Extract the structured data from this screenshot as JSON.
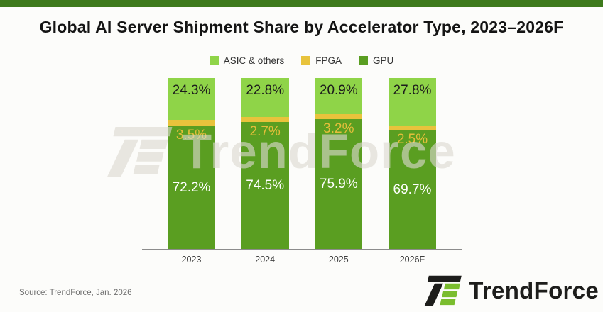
{
  "title": "Global AI Server Shipment Share by Accelerator Type, 2023–2026F",
  "source": "Source: TrendForce, Jan. 2026",
  "watermark": {
    "text": "TrendForce"
  },
  "footer": {
    "brand": "TrendForce"
  },
  "colors": {
    "banner": "#3E7A1C",
    "background": "#FCFCFA",
    "axis_line": "#8C8C8C",
    "asic_green": "#8FD448",
    "fpga_gold": "#E8C33C",
    "gpu_green": "#5A9E21"
  },
  "chart_data": {
    "type": "bar",
    "stacked": true,
    "unit": "%",
    "title": "Global AI Server Shipment Share by Accelerator Type, 2023–2026F",
    "categories": [
      "2023",
      "2024",
      "2025",
      "2026F"
    ],
    "series": [
      {
        "name": "ASIC & others",
        "color": "#8FD448",
        "label_color": "#1C1C1C",
        "values": [
          24.3,
          22.8,
          20.9,
          27.8
        ]
      },
      {
        "name": "FPGA",
        "color": "#E8C33C",
        "label_color": "#E4BE3A",
        "values": [
          3.5,
          2.7,
          3.2,
          2.5
        ]
      },
      {
        "name": "GPU",
        "color": "#5A9E21",
        "label_color": "#FFFFFF",
        "values": [
          72.2,
          74.5,
          75.9,
          69.7
        ]
      }
    ],
    "xlabel": "",
    "ylabel": "",
    "ylim": [
      0,
      100
    ],
    "grid": false,
    "legend_position": "top",
    "stack_order_top_to_bottom": [
      "ASIC & others",
      "FPGA",
      "GPU"
    ]
  }
}
